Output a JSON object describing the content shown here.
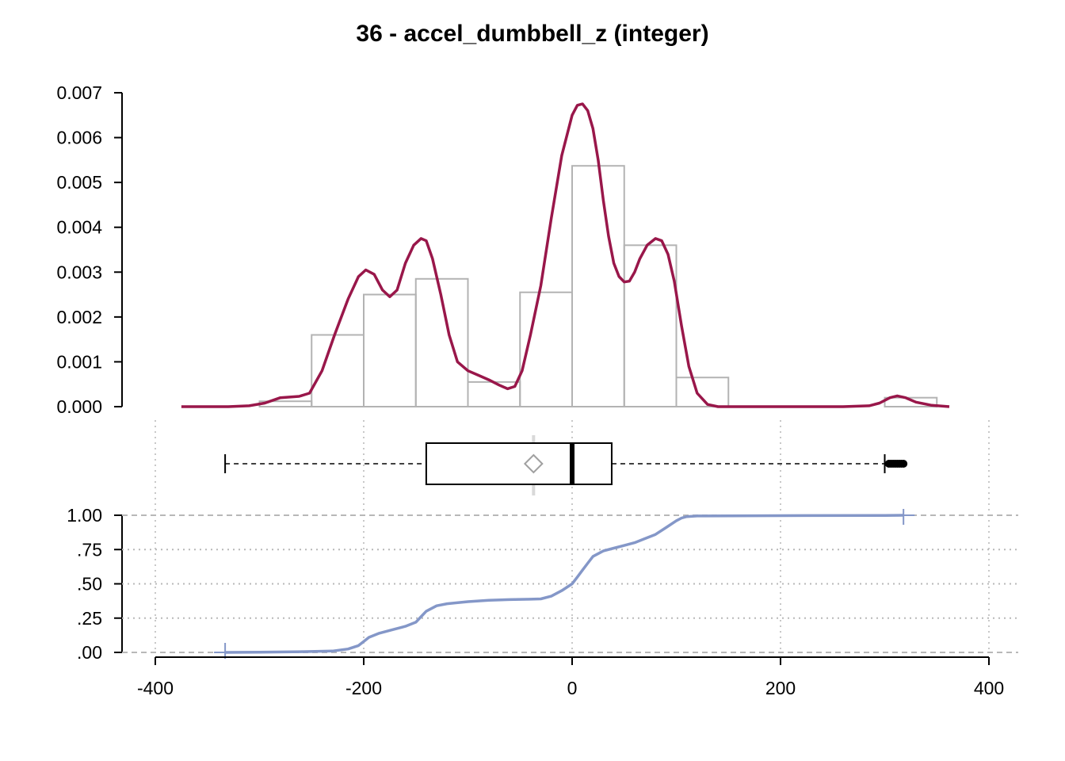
{
  "chart_data": {
    "type": "histogram",
    "title": "36 - accel_dumbbell_z (integer)",
    "xlabel": "",
    "ylabel": "",
    "x_ticks": [
      -400,
      -200,
      0,
      200,
      400
    ],
    "x_tick_labels": [
      "-400",
      "-200",
      "0",
      "200",
      "400"
    ],
    "xlim": [
      -400,
      400
    ],
    "histogram": {
      "ylim": [
        0,
        0.007
      ],
      "y_ticks": [
        0,
        0.001,
        0.002,
        0.003,
        0.004,
        0.005,
        0.006,
        0.007
      ],
      "y_tick_labels": [
        "0.000",
        "0.001",
        "0.002",
        "0.003",
        "0.004",
        "0.005",
        "0.006",
        "0.007"
      ],
      "bar_color": "#b3b3b3",
      "bins": [
        {
          "start": -300,
          "end": -250,
          "density": 0.00012
        },
        {
          "start": -250,
          "end": -200,
          "density": 0.0016
        },
        {
          "start": -200,
          "end": -150,
          "density": 0.0025
        },
        {
          "start": -150,
          "end": -100,
          "density": 0.00285
        },
        {
          "start": -100,
          "end": -50,
          "density": 0.00055
        },
        {
          "start": -50,
          "end": 0,
          "density": 0.00255
        },
        {
          "start": 0,
          "end": 50,
          "density": 0.00537
        },
        {
          "start": 50,
          "end": 100,
          "density": 0.0036
        },
        {
          "start": 100,
          "end": 150,
          "density": 0.00065
        },
        {
          "start": 150,
          "end": 200,
          "density": 0
        },
        {
          "start": 200,
          "end": 250,
          "density": 0
        },
        {
          "start": 250,
          "end": 300,
          "density": 0
        },
        {
          "start": 300,
          "end": 350,
          "density": 0.0002
        }
      ]
    },
    "density": {
      "color": "#99174a",
      "x": [
        -375,
        -330,
        -310,
        -295,
        -280,
        -262,
        -252,
        -240,
        -228,
        -215,
        -205,
        -198,
        -190,
        -182,
        -175,
        -168,
        -160,
        -152,
        -145,
        -140,
        -134,
        -126,
        -118,
        -110,
        -100,
        -90,
        -80,
        -70,
        -62,
        -55,
        -48,
        -40,
        -30,
        -20,
        -10,
        0,
        5,
        10,
        15,
        20,
        25,
        30,
        35,
        40,
        45,
        50,
        55,
        60,
        65,
        72,
        80,
        86,
        92,
        98,
        105,
        112,
        120,
        130,
        140,
        160,
        200,
        260,
        285,
        295,
        305,
        312,
        320,
        330,
        345,
        362
      ],
      "y": [
        0,
        0,
        2e-05,
        8e-05,
        0.0002,
        0.00023,
        0.0003,
        0.0008,
        0.0016,
        0.0024,
        0.0029,
        0.00305,
        0.00295,
        0.0026,
        0.00245,
        0.0026,
        0.0032,
        0.0036,
        0.00375,
        0.0037,
        0.0033,
        0.0025,
        0.0016,
        0.001,
        0.0008,
        0.0007,
        0.0006,
        0.00048,
        0.0004,
        0.00045,
        0.0008,
        0.0016,
        0.0027,
        0.0042,
        0.0056,
        0.0065,
        0.00672,
        0.00675,
        0.0066,
        0.0062,
        0.0055,
        0.0046,
        0.0038,
        0.0032,
        0.0029,
        0.00278,
        0.0028,
        0.003,
        0.0033,
        0.0036,
        0.00375,
        0.0037,
        0.0034,
        0.0028,
        0.0018,
        0.0009,
        0.0003,
        5e-05,
        0,
        0,
        0,
        0,
        2e-05,
        8e-05,
        0.0002,
        0.00024,
        0.0002,
        0.0001,
        3e-05,
        0
      ]
    },
    "boxplot": {
      "min": -333,
      "q1": -140,
      "median": 0,
      "q3": 38,
      "max": 300,
      "mean": -37,
      "outliers": [
        304,
        306,
        308,
        310,
        312,
        314,
        316,
        318
      ]
    },
    "ecdf": {
      "color": "#8497c8",
      "ylim": [
        0,
        1
      ],
      "y_ticks": [
        0,
        0.25,
        0.5,
        0.75,
        1
      ],
      "y_tick_labels": [
        ".00",
        ".25",
        ".50",
        ".75",
        "1.00"
      ],
      "x": [
        -333,
        -300,
        -260,
        -230,
        -215,
        -205,
        -200,
        -195,
        -185,
        -170,
        -160,
        -150,
        -145,
        -140,
        -130,
        -120,
        -100,
        -80,
        -60,
        -40,
        -30,
        -20,
        -10,
        0,
        5,
        10,
        15,
        20,
        25,
        30,
        40,
        50,
        60,
        70,
        80,
        90,
        100,
        105,
        110,
        120,
        200,
        300,
        318
      ],
      "y": [
        0,
        0.001,
        0.005,
        0.01,
        0.025,
        0.05,
        0.08,
        0.11,
        0.14,
        0.17,
        0.19,
        0.22,
        0.26,
        0.3,
        0.34,
        0.355,
        0.37,
        0.38,
        0.385,
        0.388,
        0.39,
        0.41,
        0.45,
        0.5,
        0.55,
        0.6,
        0.65,
        0.7,
        0.72,
        0.74,
        0.76,
        0.78,
        0.8,
        0.83,
        0.86,
        0.91,
        0.96,
        0.98,
        0.99,
        0.995,
        0.997,
        0.999,
        1.0
      ]
    }
  }
}
